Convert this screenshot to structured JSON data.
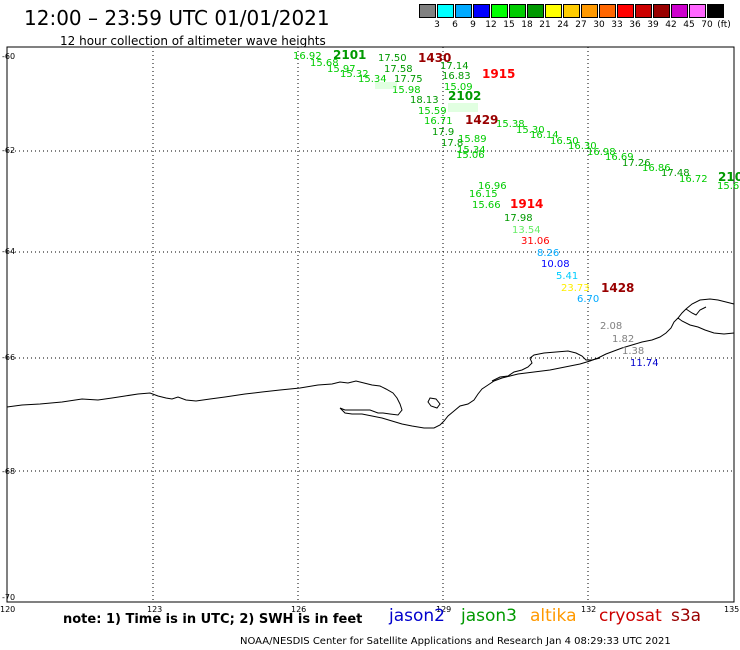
{
  "title": "12:00 – 23:59 UTC 01/01/2021",
  "subtitle": "12 hour collection of altimeter wave heights",
  "scale": {
    "unit": "(ft)",
    "labels": [
      "3",
      "6",
      "9",
      "12",
      "15",
      "18",
      "21",
      "24",
      "27",
      "30",
      "33",
      "36",
      "39",
      "42",
      "45",
      "70"
    ],
    "colors": [
      "#808080",
      "#00ffff",
      "#00aaff",
      "#0000ff",
      "#00ff00",
      "#00cc00",
      "#009900",
      "#ffff00",
      "#ffcc00",
      "#ff9900",
      "#ff6600",
      "#ff0000",
      "#cc0000",
      "#990000",
      "#cc00cc",
      "#ff66ff",
      "#000000"
    ]
  },
  "axes": {
    "lat_labels": [
      "-60",
      "-62",
      "-64",
      "-66",
      "-68",
      "-70"
    ],
    "lon_labels": [
      "120",
      "123",
      "126",
      "129",
      "132",
      "135"
    ]
  },
  "footer": {
    "note": "note: 1) Time is in UTC; 2) SWH is in feet",
    "credit": "NOAA/NESDIS Center for Satellite Applications and Research   Jan  4 08:29:33 UTC 2021",
    "satellites": [
      {
        "name": "jason2",
        "color": "#0000cc"
      },
      {
        "name": "jason3",
        "color": "#009900"
      },
      {
        "name": "altika",
        "color": "#ff9900"
      },
      {
        "name": "cryosat",
        "color": "#cc0000"
      },
      {
        "name": "s3a",
        "color": "#990000"
      }
    ]
  },
  "time_labels": [
    {
      "text": "2101",
      "color": "#009900"
    },
    {
      "text": "1430",
      "color": "#990000"
    },
    {
      "text": "1915",
      "color": "#ff0000"
    },
    {
      "text": "2102",
      "color": "#009900"
    },
    {
      "text": "1429",
      "color": "#990000"
    },
    {
      "text": "1914",
      "color": "#ff0000"
    },
    {
      "text": "1428",
      "color": "#990000"
    },
    {
      "text": "210",
      "color": "#009900"
    }
  ],
  "wave_values": [
    {
      "text": "16.92",
      "color": "#00cc00"
    },
    {
      "text": "15.68",
      "color": "#00cc00"
    },
    {
      "text": "15.97",
      "color": "#00cc00"
    },
    {
      "text": "15.32",
      "color": "#00cc00"
    },
    {
      "text": "15.34",
      "color": "#00cc00"
    },
    {
      "text": "17.50",
      "color": "#009900"
    },
    {
      "text": "17.58",
      "color": "#009900"
    },
    {
      "text": "17.75",
      "color": "#009900"
    },
    {
      "text": "15.98",
      "color": "#00cc00"
    },
    {
      "text": "18.13",
      "color": "#009900"
    },
    {
      "text": "17.14",
      "color": "#009900"
    },
    {
      "text": "16.83",
      "color": "#009900"
    },
    {
      "text": "15.09",
      "color": "#00cc00"
    },
    {
      "text": "15.59",
      "color": "#00cc00"
    },
    {
      "text": "16.71",
      "color": "#00cc00"
    },
    {
      "text": "17.9",
      "color": "#009900"
    },
    {
      "text": "17.8",
      "color": "#009900"
    },
    {
      "text": "15.38",
      "color": "#00cc00"
    },
    {
      "text": "15.30",
      "color": "#00cc00"
    },
    {
      "text": "16.14",
      "color": "#00cc00"
    },
    {
      "text": "16.50",
      "color": "#00cc00"
    },
    {
      "text": "16.30",
      "color": "#00cc00"
    },
    {
      "text": "16.98",
      "color": "#00cc00"
    },
    {
      "text": "16.69",
      "color": "#00cc00"
    },
    {
      "text": "17.26",
      "color": "#009900"
    },
    {
      "text": "16.86",
      "color": "#00cc00"
    },
    {
      "text": "17.48",
      "color": "#009900"
    },
    {
      "text": "16.72",
      "color": "#00cc00"
    },
    {
      "text": "15.6",
      "color": "#00cc00"
    },
    {
      "text": "15.89",
      "color": "#00cc00"
    },
    {
      "text": "15.34",
      "color": "#00cc00"
    },
    {
      "text": "15.06",
      "color": "#00cc00"
    },
    {
      "text": "16.96",
      "color": "#00cc00"
    },
    {
      "text": "16.15",
      "color": "#00cc00"
    },
    {
      "text": "15.66",
      "color": "#00cc00"
    },
    {
      "text": "17.98",
      "color": "#009900"
    },
    {
      "text": "13.54",
      "color": "#66ee66"
    },
    {
      "text": "31.06",
      "color": "#ff0000"
    },
    {
      "text": "8.26",
      "color": "#00aaff"
    },
    {
      "text": "10.08",
      "color": "#0000ff"
    },
    {
      "text": "5.41",
      "color": "#00ccff"
    },
    {
      "text": "23.73",
      "color": "#ffee00"
    },
    {
      "text": "6.70",
      "color": "#00aaff"
    },
    {
      "text": "2.08",
      "color": "#808080"
    },
    {
      "text": "1.82",
      "color": "#808080"
    },
    {
      "text": "1.38",
      "color": "#808080"
    },
    {
      "text": "11.74",
      "color": "#0000cc"
    }
  ]
}
